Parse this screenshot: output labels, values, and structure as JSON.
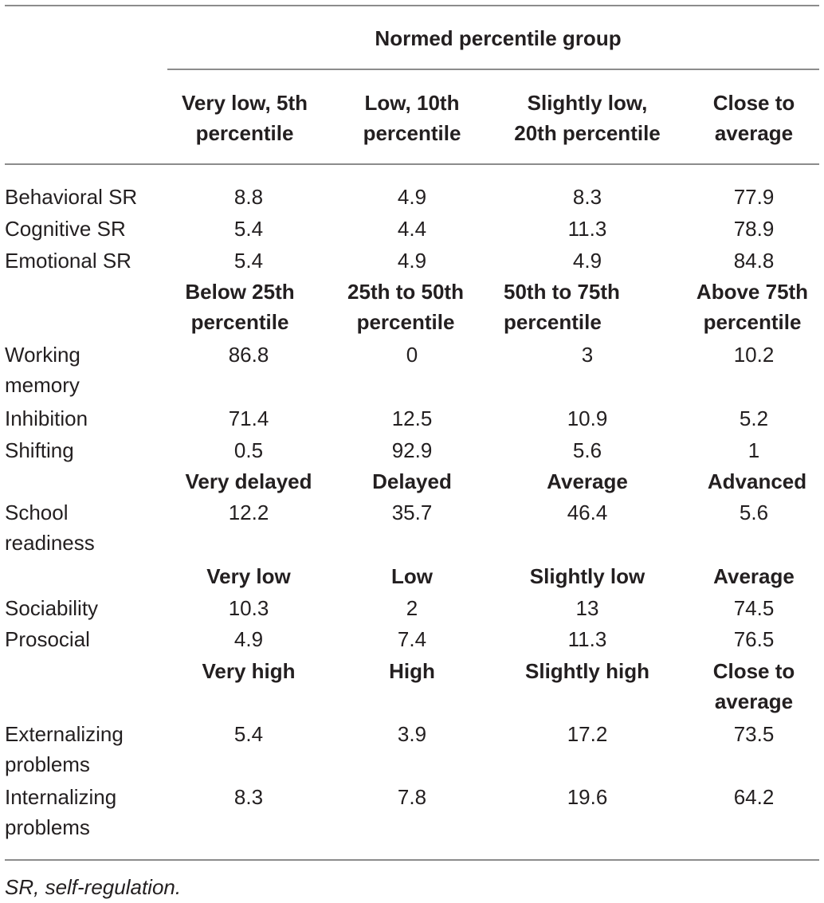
{
  "table": {
    "spanner": "Normed percentile group",
    "header": {
      "col1": [
        "Very low, 5th",
        "percentile"
      ],
      "col2": [
        "Low, 10th",
        "percentile"
      ],
      "col3": [
        "Slightly low,",
        "20th percentile"
      ],
      "col4": [
        "Close to",
        "average"
      ]
    },
    "sections": [
      {
        "rows": [
          {
            "label": [
              "Behavioral SR"
            ],
            "values": [
              "8.8",
              "4.9",
              "8.3",
              "77.9"
            ]
          },
          {
            "label": [
              "Cognitive SR"
            ],
            "values": [
              "5.4",
              "4.4",
              "11.3",
              "78.9"
            ]
          },
          {
            "label": [
              "Emotional SR"
            ],
            "values": [
              "5.4",
              "4.9",
              "4.9",
              "84.8"
            ]
          }
        ]
      },
      {
        "heads": [
          [
            "Below 25th",
            "percentile"
          ],
          [
            "25th to 50th",
            "percentile"
          ],
          [
            "50th to 75th",
            "percentile"
          ],
          [
            "Above 75th",
            "percentile"
          ]
        ],
        "rows": [
          {
            "label": [
              "Working",
              "memory"
            ],
            "values": [
              "86.8",
              "0",
              "3",
              "10.2"
            ]
          },
          {
            "label": [
              "Inhibition"
            ],
            "values": [
              "71.4",
              "12.5",
              "10.9",
              "5.2"
            ]
          },
          {
            "label": [
              "Shifting"
            ],
            "values": [
              "0.5",
              "92.9",
              "5.6",
              "1"
            ]
          }
        ]
      },
      {
        "heads": [
          [
            "Very delayed"
          ],
          [
            "Delayed"
          ],
          [
            "Average"
          ],
          [
            "Advanced"
          ]
        ],
        "rows": [
          {
            "label": [
              "School",
              "readiness"
            ],
            "values": [
              "12.2",
              "35.7",
              "46.4",
              "5.6"
            ]
          }
        ]
      },
      {
        "heads": [
          [
            "Very low"
          ],
          [
            "Low"
          ],
          [
            "Slightly low"
          ],
          [
            "Average"
          ]
        ],
        "rows": [
          {
            "label": [
              "Sociability"
            ],
            "values": [
              "10.3",
              "2",
              "13",
              "74.5"
            ]
          },
          {
            "label": [
              "Prosocial"
            ],
            "values": [
              "4.9",
              "7.4",
              "11.3",
              "76.5"
            ]
          }
        ]
      },
      {
        "heads": [
          [
            "Very high"
          ],
          [
            "High"
          ],
          [
            "Slightly high"
          ],
          [
            "Close to",
            "average"
          ]
        ],
        "rows": [
          {
            "label": [
              "Externalizing",
              "problems"
            ],
            "values": [
              "5.4",
              "3.9",
              "17.2",
              "73.5"
            ]
          },
          {
            "label": [
              "Internalizing",
              "problems"
            ],
            "values": [
              "8.3",
              "7.8",
              "19.6",
              "64.2"
            ]
          }
        ]
      }
    ],
    "footnote": "SR, self-regulation."
  }
}
